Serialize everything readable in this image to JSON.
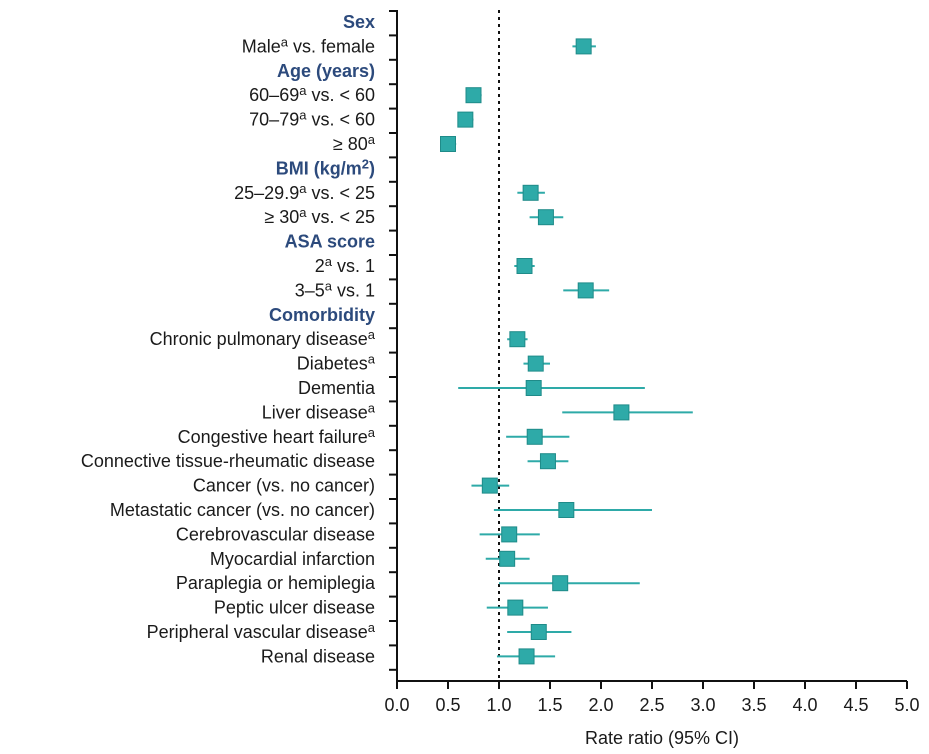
{
  "chart_data": {
    "type": "forest",
    "xlabel": "Rate ratio (95% CI)",
    "xlim": [
      0,
      5
    ],
    "xticks": [
      "0.0",
      "0.5",
      "1.0",
      "1.5",
      "2.0",
      "2.5",
      "3.0",
      "3.5",
      "4.0",
      "4.5",
      "5.0"
    ],
    "reference_line": 1.0,
    "colors": {
      "marker": "#2eaaa8",
      "group_label": "#2c4a7c",
      "axis": "#111111"
    },
    "rows": [
      {
        "kind": "group",
        "label": "Sex"
      },
      {
        "kind": "item",
        "label": "Male",
        "sup": "a",
        "suffix": " vs. female",
        "est": 1.83,
        "lo": 1.72,
        "hi": 1.95
      },
      {
        "kind": "group",
        "label": "Age (years)"
      },
      {
        "kind": "item",
        "label": "60–69",
        "sup": "a",
        "suffix": " vs. < 60",
        "est": 0.75,
        "lo": 0.68,
        "hi": 0.83
      },
      {
        "kind": "item",
        "label": "70–79",
        "sup": "a",
        "suffix": " vs. < 60",
        "est": 0.67,
        "lo": 0.6,
        "hi": 0.75
      },
      {
        "kind": "item",
        "label": "≥ 80",
        "sup": "a",
        "suffix": "",
        "est": 0.5,
        "lo": 0.43,
        "hi": 0.58
      },
      {
        "kind": "group",
        "label": "BMI (kg/m",
        "sup": "2",
        "suffix": ")"
      },
      {
        "kind": "item",
        "label": "25–29.9",
        "sup": "a",
        "suffix": " vs. < 25",
        "est": 1.31,
        "lo": 1.18,
        "hi": 1.45
      },
      {
        "kind": "item",
        "label": "≥ 30",
        "sup": "a",
        "suffix": " vs. < 25",
        "est": 1.46,
        "lo": 1.3,
        "hi": 1.63
      },
      {
        "kind": "group",
        "label": "ASA score"
      },
      {
        "kind": "item",
        "label": "2",
        "sup": "a",
        "suffix": " vs. 1",
        "est": 1.25,
        "lo": 1.15,
        "hi": 1.35
      },
      {
        "kind": "item",
        "label": "3–5",
        "sup": "a",
        "suffix": " vs. 1",
        "est": 1.85,
        "lo": 1.63,
        "hi": 2.08
      },
      {
        "kind": "group",
        "label": "Comorbidity"
      },
      {
        "kind": "item",
        "label": "Chronic pulmonary disease",
        "sup": "a",
        "suffix": "",
        "est": 1.18,
        "lo": 1.08,
        "hi": 1.28
      },
      {
        "kind": "item",
        "label": "Diabetes",
        "sup": "a",
        "suffix": "",
        "est": 1.36,
        "lo": 1.24,
        "hi": 1.5
      },
      {
        "kind": "item",
        "label": "Dementia",
        "sup": "",
        "suffix": "",
        "est": 1.34,
        "lo": 0.6,
        "hi": 2.43
      },
      {
        "kind": "item",
        "label": "Liver disease",
        "sup": "a",
        "suffix": "",
        "est": 2.2,
        "lo": 1.62,
        "hi": 2.9
      },
      {
        "kind": "item",
        "label": "Congestive heart failure",
        "sup": "a",
        "suffix": "",
        "est": 1.35,
        "lo": 1.07,
        "hi": 1.69
      },
      {
        "kind": "item",
        "label": "Connective tissue-rheumatic disease",
        "sup": "",
        "suffix": "",
        "est": 1.48,
        "lo": 1.28,
        "hi": 1.68
      },
      {
        "kind": "item",
        "label": "Cancer (vs. no cancer)",
        "sup": "",
        "suffix": "",
        "est": 0.91,
        "lo": 0.73,
        "hi": 1.1
      },
      {
        "kind": "item",
        "label": "Metastatic cancer (vs. no cancer)",
        "sup": "",
        "suffix": "",
        "est": 1.66,
        "lo": 0.95,
        "hi": 2.5
      },
      {
        "kind": "item",
        "label": "Cerebrovascular disease",
        "sup": "",
        "suffix": "",
        "est": 1.1,
        "lo": 0.81,
        "hi": 1.4
      },
      {
        "kind": "item",
        "label": "Myocardial infarction",
        "sup": "",
        "suffix": "",
        "est": 1.08,
        "lo": 0.87,
        "hi": 1.3
      },
      {
        "kind": "item",
        "label": "Paraplegia or hemiplegia",
        "sup": "",
        "suffix": "",
        "est": 1.6,
        "lo": 1.0,
        "hi": 2.38
      },
      {
        "kind": "item",
        "label": "Peptic ulcer disease",
        "sup": "",
        "suffix": "",
        "est": 1.16,
        "lo": 0.88,
        "hi": 1.48
      },
      {
        "kind": "item",
        "label": "Peripheral vascular disease",
        "sup": "a",
        "suffix": "",
        "est": 1.39,
        "lo": 1.08,
        "hi": 1.71
      },
      {
        "kind": "item",
        "label": "Renal disease",
        "sup": "",
        "suffix": "",
        "est": 1.27,
        "lo": 0.98,
        "hi": 1.55
      }
    ]
  }
}
